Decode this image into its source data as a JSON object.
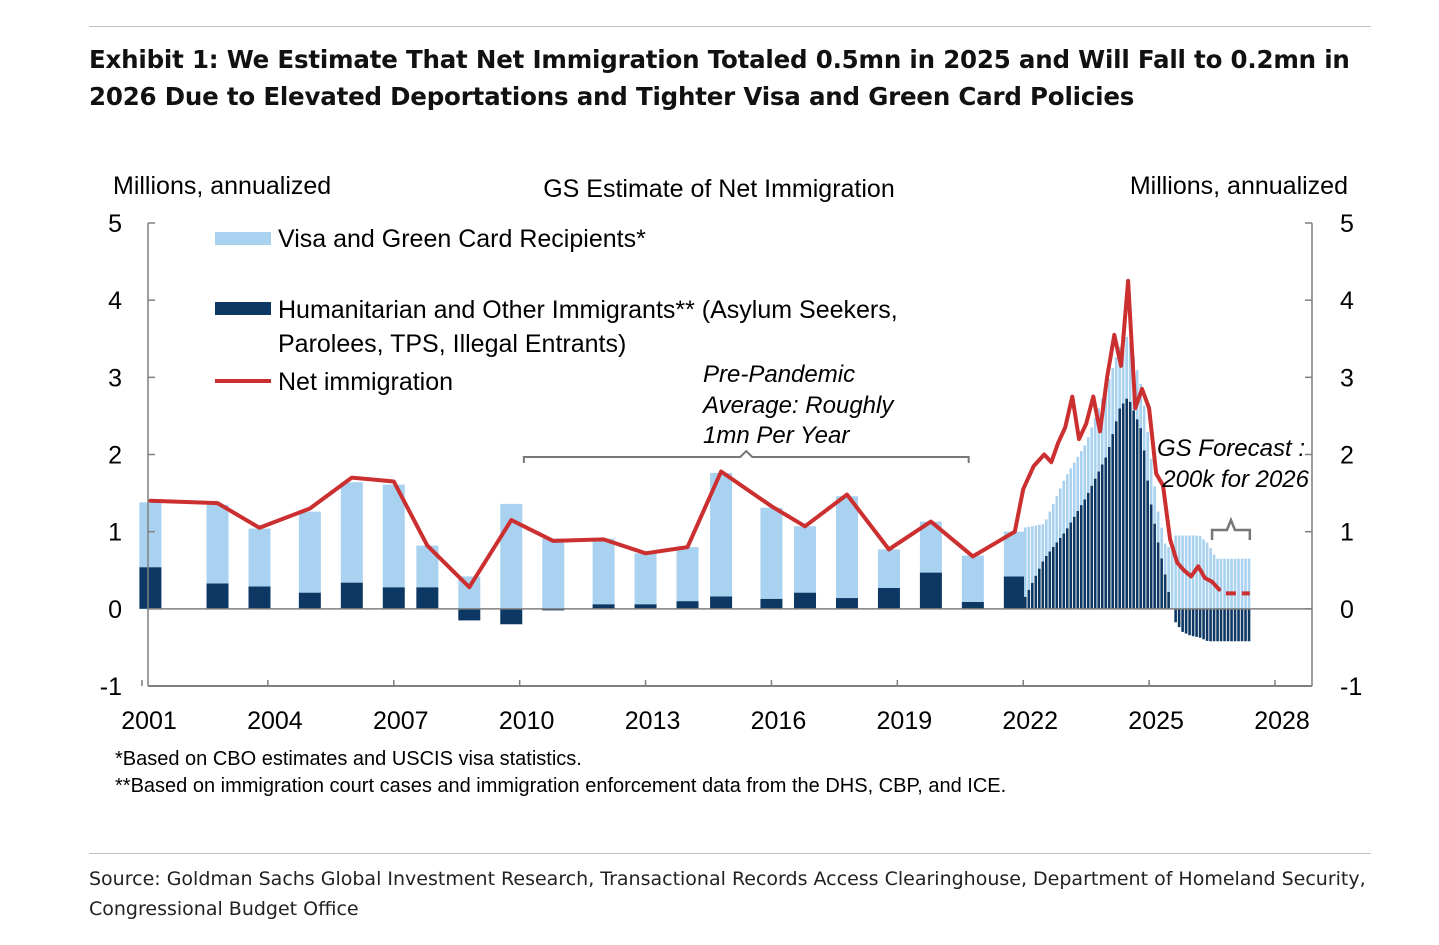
{
  "exhibit_title": "Exhibit 1: We Estimate That Net Immigration Totaled 0.5mn in 2025 and Will Fall to 0.2mn in 2026 Due to Elevated Deportations and Tighter Visa and Green Card Policies",
  "source_note": "Source: Goldman Sachs Global Investment Research, Transactional Records Access Clearinghouse, Department of Homeland Security, Congressional Budget Office",
  "chart_data": {
    "type": "bar",
    "title": "GS Estimate of Net Immigration",
    "ylabel_left": "Millions, annualized",
    "ylabel_right": "Millions, annualized",
    "ylim": [
      -1,
      5
    ],
    "yticks": [
      5,
      4,
      3,
      2,
      1,
      0,
      -1
    ],
    "xlim": [
      2001,
      2028
    ],
    "xticks": [
      "2001",
      "2004",
      "2007",
      "2010",
      "2013",
      "2016",
      "2019",
      "2022",
      "2025",
      "2028"
    ],
    "legend": {
      "placement": "top-left",
      "visa_label": "Visa and Green Card Recipients*",
      "humanitarian_label": "Humanitarian and Other Immigrants** (Asylum Seekers,",
      "humanitarian_label_line2": "Parolees, TPS, Illegal Entrants)",
      "net_label": "Net immigration"
    },
    "colors": {
      "visa": "#a9d2f0",
      "humanitarian": "#0d3863",
      "net": "#cc2f2f",
      "axis": "#7f7f7f"
    },
    "annotations": {
      "prepandemic_line1": "Pre-Pandemic",
      "prepandemic_line2": "Average: Roughly",
      "prepandemic_line3": "1mn Per Year",
      "prepandemic_range": [
        2010.1,
        2020.7
      ],
      "forecast_line1": "GS Forecast :",
      "forecast_line2": "200k for 2026",
      "forecast_range": [
        2026.5,
        2027.4
      ]
    },
    "footnotes": [
      "*Based on CBO estimates and USCIS visa statistics.",
      "**Based on immigration court cases and immigration enforcement data from the DHS, CBP, and ICE."
    ],
    "annual": [
      {
        "x": 2001.2,
        "humanitarian": 0.54,
        "visa": 0.84,
        "net": 1.4
      },
      {
        "x": 2002.8,
        "humanitarian": 0.33,
        "visa": 1.02,
        "net": 1.37
      },
      {
        "x": 2003.8,
        "humanitarian": 0.29,
        "visa": 0.75,
        "net": 1.05
      },
      {
        "x": 2005.0,
        "humanitarian": 0.21,
        "visa": 1.05,
        "net": 1.3
      },
      {
        "x": 2006.0,
        "humanitarian": 0.34,
        "visa": 1.3,
        "net": 1.7
      },
      {
        "x": 2007.0,
        "humanitarian": 0.28,
        "visa": 1.33,
        "net": 1.65
      },
      {
        "x": 2007.8,
        "humanitarian": 0.28,
        "visa": 0.54,
        "net": 0.82
      },
      {
        "x": 2008.8,
        "humanitarian": -0.15,
        "visa": 0.42,
        "net": 0.28
      },
      {
        "x": 2009.8,
        "humanitarian": -0.2,
        "visa": 1.36,
        "net": 1.15
      },
      {
        "x": 2010.8,
        "humanitarian": -0.02,
        "visa": 0.91,
        "net": 0.88
      },
      {
        "x": 2012.0,
        "humanitarian": 0.06,
        "visa": 0.85,
        "net": 0.9
      },
      {
        "x": 2013.0,
        "humanitarian": 0.06,
        "visa": 0.66,
        "net": 0.72
      },
      {
        "x": 2014.0,
        "humanitarian": 0.1,
        "visa": 0.7,
        "net": 0.8
      },
      {
        "x": 2014.8,
        "humanitarian": 0.16,
        "visa": 1.6,
        "net": 1.78
      },
      {
        "x": 2016.0,
        "humanitarian": 0.13,
        "visa": 1.18,
        "net": 1.33
      },
      {
        "x": 2016.8,
        "humanitarian": 0.21,
        "visa": 0.86,
        "net": 1.07
      },
      {
        "x": 2017.8,
        "humanitarian": 0.14,
        "visa": 1.32,
        "net": 1.48
      },
      {
        "x": 2018.8,
        "humanitarian": 0.27,
        "visa": 0.5,
        "net": 0.77
      },
      {
        "x": 2019.8,
        "humanitarian": 0.47,
        "visa": 0.66,
        "net": 1.13
      },
      {
        "x": 2020.8,
        "humanitarian": 0.09,
        "visa": 0.6,
        "net": 0.68
      },
      {
        "x": 2021.8,
        "humanitarian": 0.42,
        "visa": 0.58,
        "net": 1.0
      }
    ],
    "monthly_net": [
      [
        2022.0,
        1.55
      ],
      [
        2022.25,
        1.85
      ],
      [
        2022.5,
        2.0
      ],
      [
        2022.67,
        1.9
      ],
      [
        2022.83,
        2.15
      ],
      [
        2023.0,
        2.35
      ],
      [
        2023.17,
        2.75
      ],
      [
        2023.33,
        2.2
      ],
      [
        2023.5,
        2.4
      ],
      [
        2023.67,
        2.75
      ],
      [
        2023.83,
        2.3
      ],
      [
        2024.0,
        3.0
      ],
      [
        2024.17,
        3.55
      ],
      [
        2024.33,
        3.15
      ],
      [
        2024.5,
        4.25
      ],
      [
        2024.67,
        2.6
      ],
      [
        2024.83,
        2.85
      ],
      [
        2025.0,
        2.6
      ],
      [
        2025.17,
        1.75
      ],
      [
        2025.33,
        1.6
      ],
      [
        2025.5,
        0.9
      ],
      [
        2025.67,
        0.6
      ],
      [
        2025.83,
        0.5
      ],
      [
        2026.0,
        0.42
      ],
      [
        2026.17,
        0.55
      ],
      [
        2026.33,
        0.4
      ],
      [
        2026.5,
        0.35
      ],
      [
        2026.67,
        0.25
      ]
    ],
    "forecast_net": {
      "from": 2026.83,
      "to": 2027.4,
      "value": 0.2
    },
    "monthly_stack": {
      "from": 2022.05,
      "to": 2027.4,
      "step": 0.0833,
      "points": [
        [
          2022.0,
          0.1,
          0.95
        ],
        [
          2022.5,
          0.65,
          0.45
        ],
        [
          2023.0,
          1.0,
          0.7
        ],
        [
          2023.5,
          1.45,
          0.7
        ],
        [
          2024.0,
          2.0,
          0.9
        ],
        [
          2024.3,
          2.6,
          0.8
        ],
        [
          2024.5,
          2.75,
          0.8
        ],
        [
          2024.83,
          2.3,
          0.55
        ],
        [
          2025.0,
          1.5,
          0.65
        ],
        [
          2025.2,
          0.9,
          0.4
        ],
        [
          2025.4,
          0.4,
          0.4
        ],
        [
          2025.6,
          -0.15,
          0.95
        ],
        [
          2025.8,
          -0.3,
          0.95
        ],
        [
          2026.0,
          -0.35,
          0.95
        ],
        [
          2026.2,
          -0.37,
          0.95
        ],
        [
          2026.4,
          -0.42,
          0.85
        ],
        [
          2026.6,
          -0.42,
          0.65
        ],
        [
          2027.4,
          -0.42,
          0.65
        ]
      ]
    }
  }
}
